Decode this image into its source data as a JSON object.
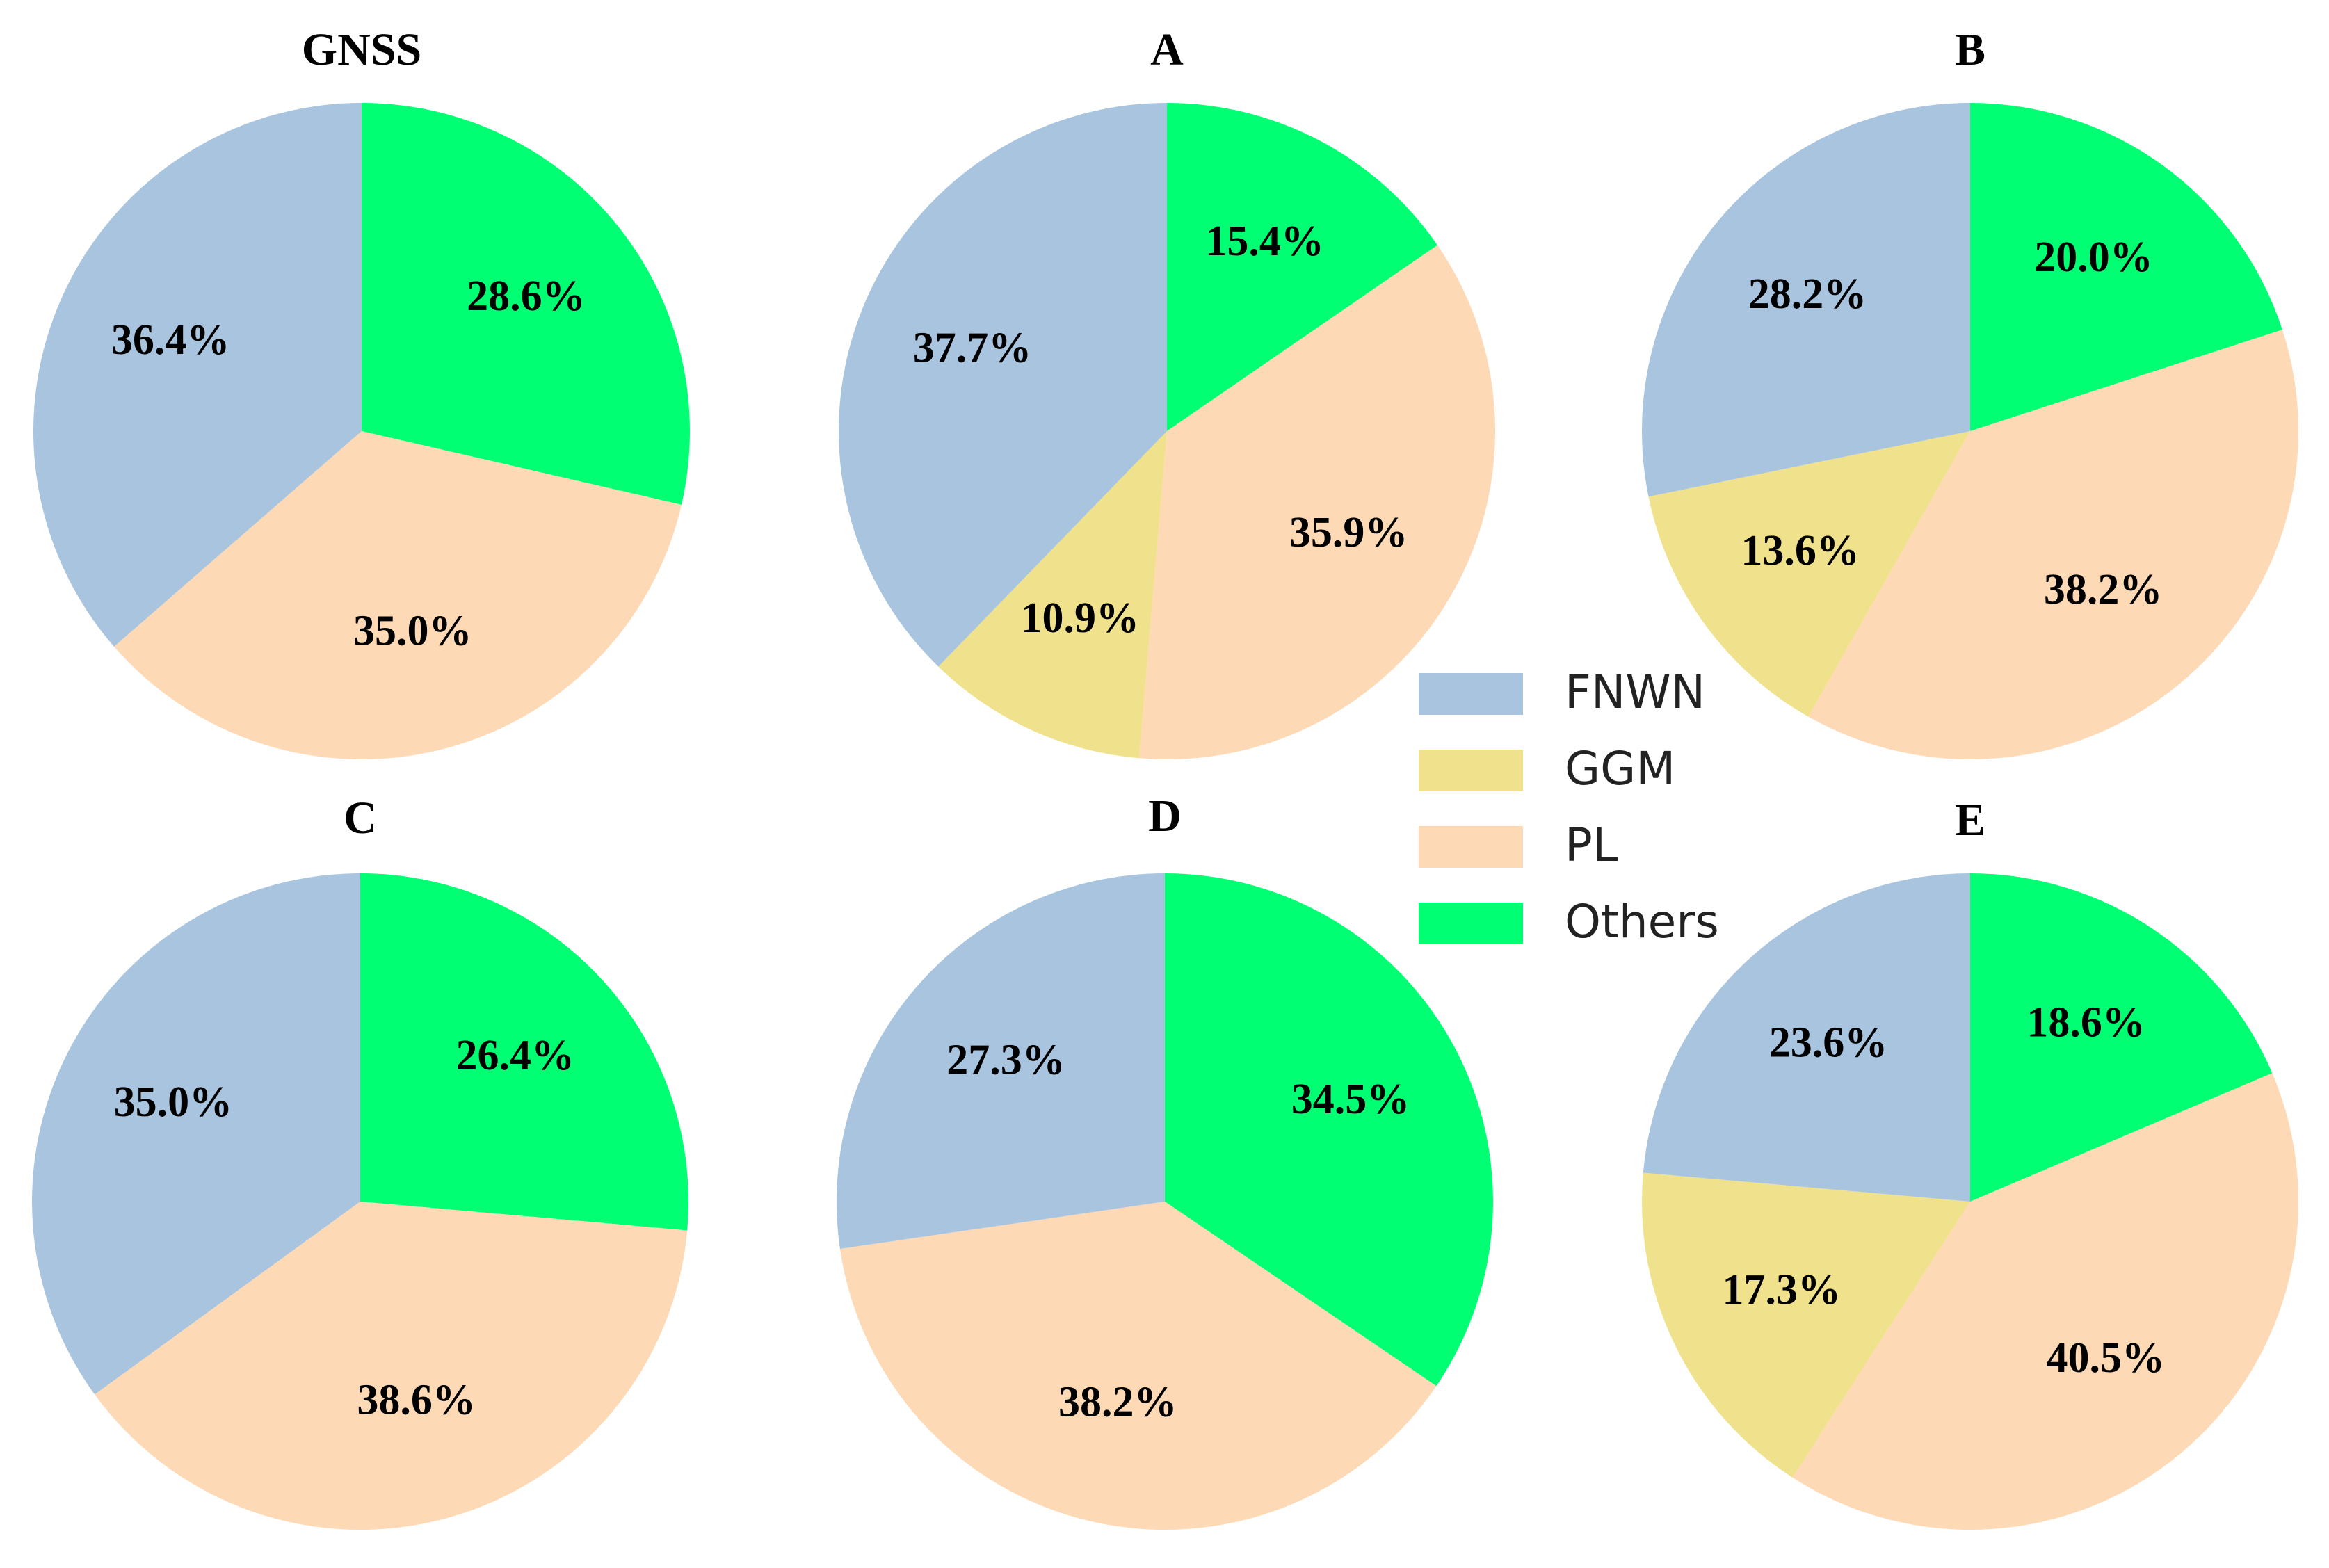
{
  "chart_data": {
    "type": "pie",
    "categories": [
      "FNWN",
      "GGM",
      "PL",
      "Others"
    ],
    "colors": {
      "FNWN": "#a9c4de",
      "GGM": "#f0e28c",
      "PL": "#fdd9b5",
      "Others": "#00ff73"
    },
    "pies": [
      {
        "title": "GNSS",
        "values": [
          36.4,
          0,
          35.0,
          28.6
        ],
        "labels": [
          "36.4%",
          "",
          "35.0%",
          "28.6%"
        ]
      },
      {
        "title": "A",
        "values": [
          37.7,
          10.9,
          35.9,
          15.4
        ],
        "labels": [
          "37.7%",
          "10.9%",
          "35.9%",
          "15.4%"
        ]
      },
      {
        "title": "B",
        "values": [
          28.2,
          13.6,
          38.2,
          20.0
        ],
        "labels": [
          "28.2%",
          "13.6%",
          "38.2%",
          "20.0%"
        ]
      },
      {
        "title": "C",
        "values": [
          35.0,
          0,
          38.6,
          26.4
        ],
        "labels": [
          "35.0%",
          "",
          "38.6%",
          "26.4%"
        ]
      },
      {
        "title": "D",
        "values": [
          27.3,
          0,
          38.2,
          34.5
        ],
        "labels": [
          "27.3%",
          "",
          "38.2%",
          "34.5%"
        ]
      },
      {
        "title": "E",
        "values": [
          23.6,
          17.3,
          40.5,
          18.6
        ],
        "labels": [
          "23.6%",
          "17.3%",
          "40.5%",
          "18.6%"
        ]
      }
    ],
    "legend": {
      "placement": "center",
      "entries": [
        "FNWN",
        "GGM",
        "PL",
        "Others"
      ]
    }
  }
}
